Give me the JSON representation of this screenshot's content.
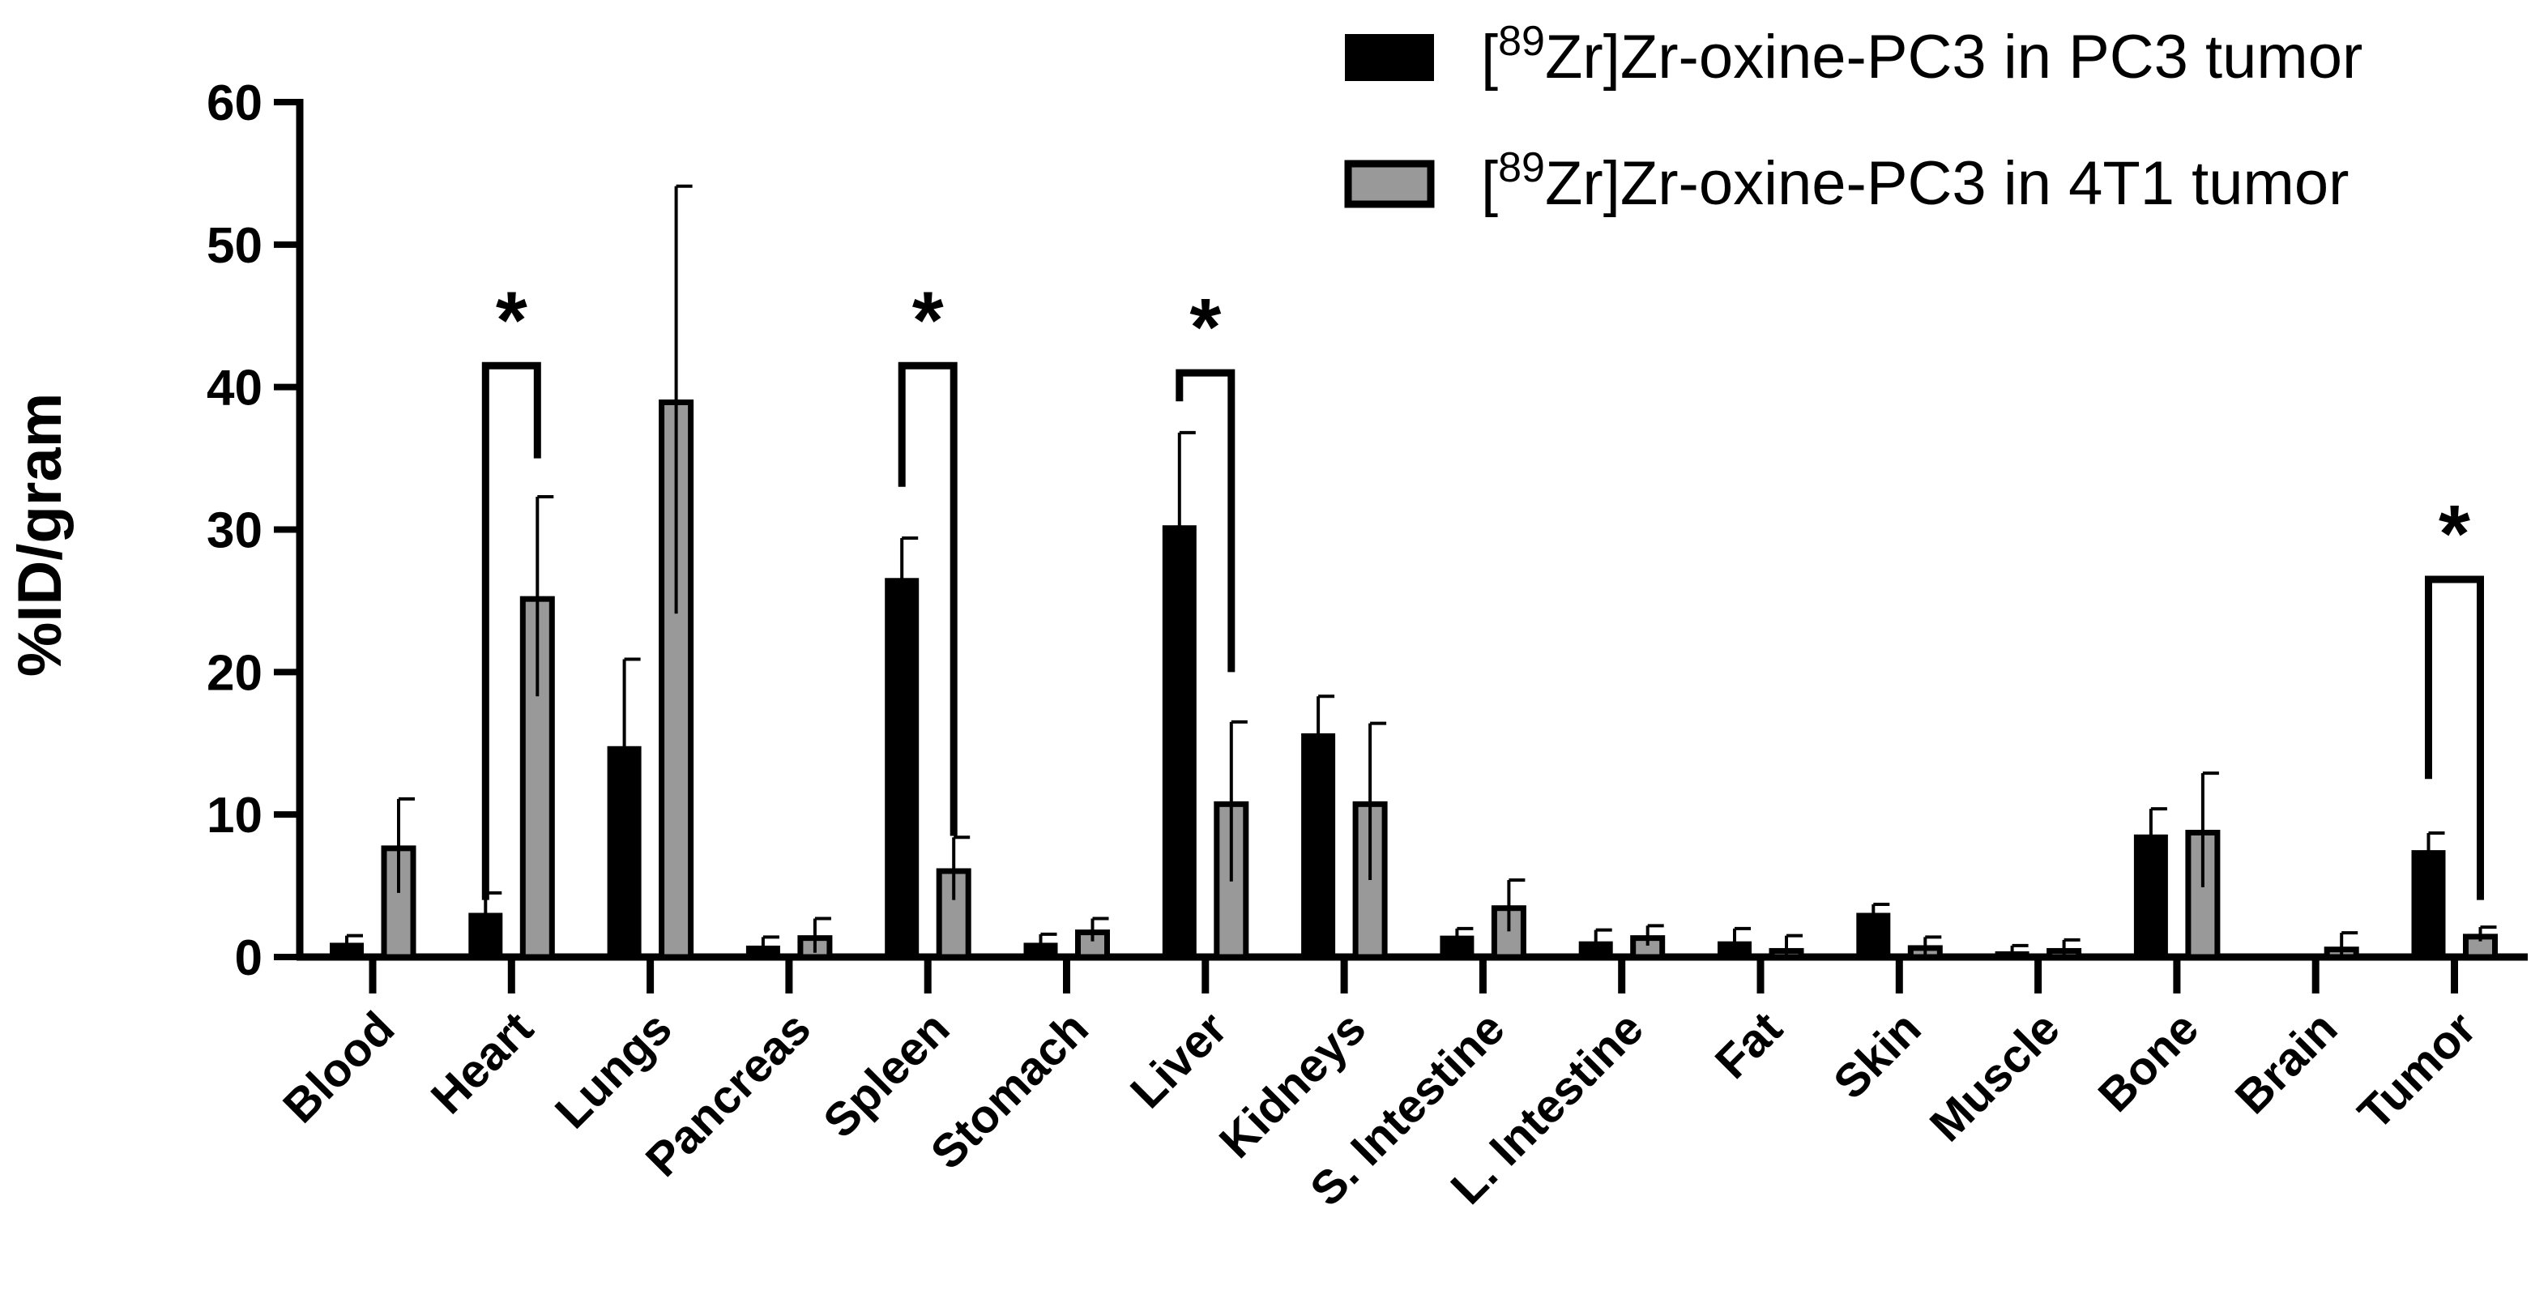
{
  "chart_data": {
    "type": "bar",
    "ylabel": "%ID/gram",
    "ylim": [
      0,
      60
    ],
    "yticks": [
      0,
      10,
      20,
      30,
      40,
      50,
      60
    ],
    "categories": [
      "Blood",
      "Heart",
      "Lungs",
      "Pancreas",
      "Spleen",
      "Stomach",
      "Liver",
      "Kidneys",
      "S. Intestine",
      "L. Intestine",
      "Fat",
      "Skin",
      "Muscle",
      "Bone",
      "Brain",
      "Tumor"
    ],
    "series": [
      {
        "name": "[89Zr]Zr-oxine-PC3 in PC3 tumor",
        "legend_prefix": "[",
        "legend_sup": "89",
        "legend_suffix": "Zr]Zr-oxine-PC3 in PC3 tumor",
        "color": "#000000",
        "values": [
          1.0,
          3.1,
          14.8,
          0.8,
          26.6,
          1.0,
          30.3,
          15.7,
          1.5,
          1.1,
          1.1,
          3.1,
          0.4,
          8.6,
          0.0,
          7.5
        ],
        "errors": [
          0.5,
          1.4,
          6.1,
          0.6,
          2.8,
          0.6,
          6.5,
          2.6,
          0.5,
          0.8,
          0.9,
          0.6,
          0.4,
          1.8,
          0.0,
          1.2
        ]
      },
      {
        "name": "[89Zr]Zr-oxine-PC3 in 4T1 tumor",
        "legend_prefix": "[",
        "legend_sup": "89",
        "legend_suffix": "Zr]Zr-oxine-PC3 in 4T1 tumor",
        "color": "#999999",
        "values": [
          7.8,
          25.3,
          39.1,
          1.5,
          6.2,
          1.9,
          10.9,
          10.9,
          3.6,
          1.5,
          0.6,
          0.8,
          0.6,
          8.9,
          0.7,
          1.6
        ],
        "errors": [
          3.3,
          7.0,
          15.0,
          1.2,
          2.2,
          0.8,
          5.6,
          5.5,
          1.8,
          0.7,
          0.9,
          0.6,
          0.6,
          4.0,
          1.0,
          0.5
        ]
      }
    ],
    "significance": [
      {
        "category": "Heart",
        "label": "*",
        "bracket_top": 41.5,
        "left_end": 4.0,
        "right_end": 35.0
      },
      {
        "category": "Spleen",
        "label": "*",
        "bracket_top": 41.5,
        "left_end": 33.0,
        "right_end": 8.5
      },
      {
        "category": "Liver",
        "label": "*",
        "bracket_top": 41.0,
        "left_end": 39.0,
        "right_end": 20.0
      },
      {
        "category": "Tumor",
        "label": "*",
        "bracket_top": 26.5,
        "left_end": 12.5,
        "right_end": 4.0
      }
    ],
    "legend_position": "top-right",
    "grid": false
  }
}
